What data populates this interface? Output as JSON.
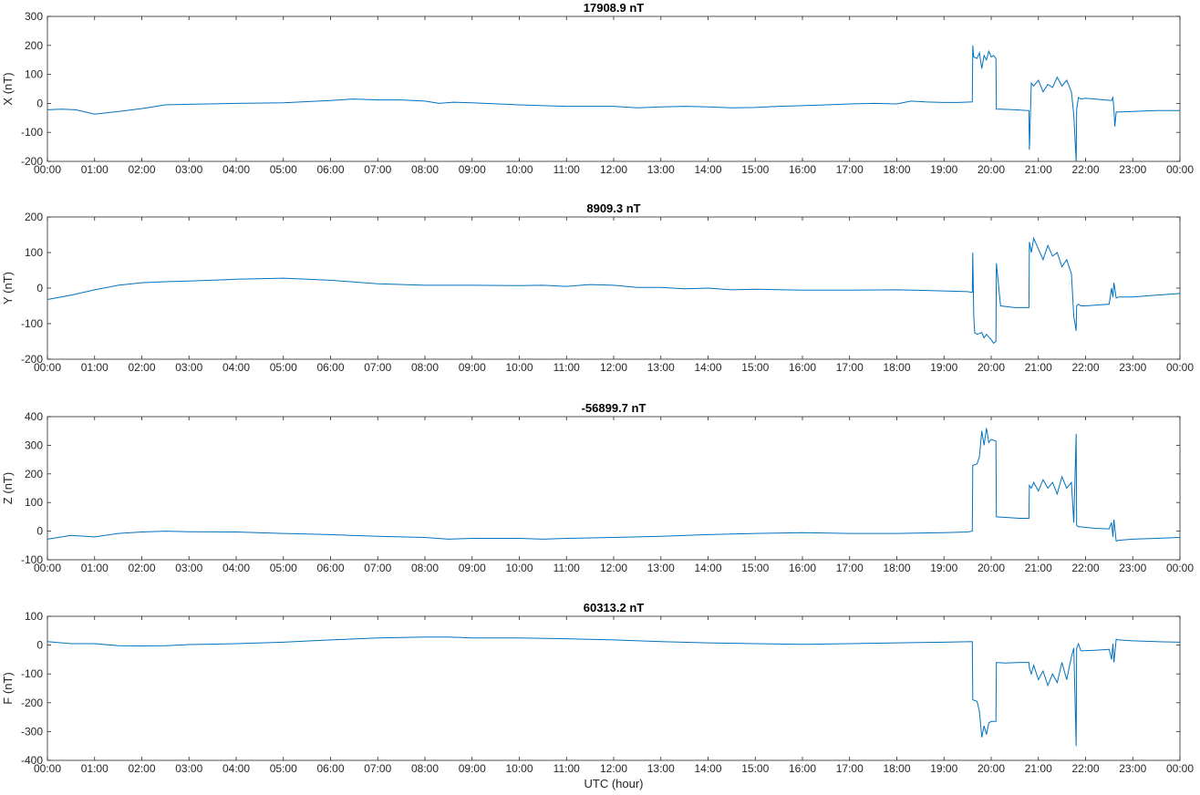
{
  "figure": {
    "xlabel": "UTC (hour)",
    "x_tick_labels": [
      "00:00",
      "01:00",
      "02:00",
      "03:00",
      "04:00",
      "05:00",
      "06:00",
      "07:00",
      "08:00",
      "09:00",
      "10:00",
      "11:00",
      "12:00",
      "13:00",
      "14:00",
      "15:00",
      "16:00",
      "17:00",
      "18:00",
      "19:00",
      "20:00",
      "21:00",
      "22:00",
      "23:00",
      "00:00"
    ],
    "line_color": "#0072BD"
  },
  "chart_data": [
    {
      "type": "line",
      "title": "17908.9 nT",
      "ylabel": "X (nT)",
      "xlim": [
        0,
        24
      ],
      "ylim": [
        -200,
        300
      ],
      "yticks": [
        -200,
        -100,
        0,
        100,
        200,
        300
      ],
      "grid": false,
      "series": [
        {
          "x": [
            0,
            0.3,
            0.6,
            1.0,
            1.4,
            2.0,
            2.5,
            3.0,
            4.0,
            5.0,
            6.0,
            6.5,
            7.0,
            7.5,
            8.0,
            8.3,
            8.6,
            9.0,
            10.0,
            10.5,
            11.0,
            11.5,
            12.0,
            12.5,
            13.0,
            13.5,
            14.0,
            14.5,
            15.0,
            15.5,
            16.0,
            16.5,
            17.0,
            17.5,
            18.0,
            18.3,
            18.6,
            19.0,
            19.3,
            19.6,
            19.61,
            19.63,
            19.7,
            19.75,
            19.8,
            19.85,
            19.9,
            19.95,
            20.0,
            20.05,
            20.1,
            20.11,
            20.2,
            20.5,
            20.8,
            20.81,
            20.85,
            20.9,
            21.0,
            21.1,
            21.2,
            21.3,
            21.4,
            21.5,
            21.6,
            21.7,
            21.75,
            21.8,
            21.81,
            21.85,
            21.9,
            22.0,
            22.2,
            22.4,
            22.55,
            22.58,
            22.6,
            22.62,
            22.65,
            22.7,
            23.0,
            23.5,
            24.0
          ],
          "values": [
            -22,
            -20,
            -22,
            -37,
            -30,
            -18,
            -5,
            -3,
            0,
            2,
            10,
            15,
            12,
            12,
            8,
            0,
            4,
            2,
            -5,
            -8,
            -10,
            -10,
            -10,
            -15,
            -12,
            -10,
            -12,
            -15,
            -14,
            -10,
            -8,
            -5,
            -2,
            0,
            -2,
            8,
            5,
            3,
            3,
            5,
            200,
            160,
            155,
            175,
            120,
            165,
            150,
            180,
            160,
            165,
            155,
            -20,
            -20,
            -22,
            -25,
            -160,
            70,
            60,
            80,
            40,
            65,
            55,
            90,
            60,
            80,
            40,
            -40,
            -200,
            -20,
            20,
            15,
            18,
            15,
            12,
            10,
            20,
            -20,
            -80,
            -30,
            -30,
            -28,
            -25,
            -25
          ]
        }
      ]
    },
    {
      "type": "line",
      "title": "8909.3 nT",
      "ylabel": "Y (nT)",
      "xlim": [
        0,
        24
      ],
      "ylim": [
        -200,
        200
      ],
      "yticks": [
        -200,
        -100,
        0,
        100,
        200
      ],
      "grid": false,
      "series": [
        {
          "x": [
            0,
            0.5,
            1.0,
            1.5,
            2.0,
            2.5,
            3.0,
            4.0,
            5.0,
            6.0,
            7.0,
            8.0,
            9.0,
            10.0,
            10.5,
            11.0,
            11.5,
            12.0,
            12.5,
            13.0,
            13.5,
            14.0,
            14.5,
            15.0,
            16.0,
            17.0,
            18.0,
            19.0,
            19.5,
            19.6,
            19.61,
            19.63,
            19.65,
            19.7,
            19.8,
            19.85,
            19.9,
            20.0,
            20.05,
            20.1,
            20.11,
            20.2,
            20.5,
            20.8,
            20.81,
            20.85,
            20.9,
            21.0,
            21.1,
            21.2,
            21.3,
            21.4,
            21.5,
            21.6,
            21.7,
            21.75,
            21.8,
            21.81,
            21.85,
            21.9,
            22.0,
            22.2,
            22.5,
            22.55,
            22.58,
            22.6,
            22.65,
            22.7,
            23.0,
            23.5,
            24.0
          ],
          "values": [
            -32,
            -20,
            -5,
            8,
            15,
            18,
            20,
            25,
            28,
            22,
            12,
            8,
            8,
            7,
            8,
            5,
            10,
            8,
            2,
            2,
            -2,
            0,
            -5,
            -3,
            -6,
            -6,
            -5,
            -8,
            -10,
            -12,
            100,
            -80,
            -125,
            -130,
            -125,
            -140,
            -130,
            -145,
            -155,
            -150,
            70,
            -50,
            -55,
            -55,
            130,
            100,
            140,
            110,
            80,
            120,
            90,
            100,
            60,
            80,
            40,
            -80,
            -120,
            -50,
            -45,
            -50,
            -50,
            -48,
            -45,
            0,
            -25,
            15,
            -28,
            -25,
            -25,
            -20,
            -15
          ]
        }
      ]
    },
    {
      "type": "line",
      "title": "-56899.7 nT",
      "ylabel": "Z (nT)",
      "xlim": [
        0,
        24
      ],
      "ylim": [
        -100,
        400
      ],
      "yticks": [
        -100,
        0,
        100,
        200,
        300,
        400
      ],
      "grid": false,
      "series": [
        {
          "x": [
            0,
            0.5,
            1.0,
            1.5,
            2.0,
            2.5,
            3.0,
            4.0,
            5.0,
            6.0,
            7.0,
            8.0,
            8.5,
            9.0,
            10.0,
            10.5,
            11.0,
            12.0,
            13.0,
            14.0,
            15.0,
            16.0,
            17.0,
            18.0,
            19.0,
            19.5,
            19.6,
            19.61,
            19.7,
            19.75,
            19.8,
            19.85,
            19.9,
            19.95,
            20.0,
            20.1,
            20.11,
            20.3,
            20.6,
            20.8,
            20.81,
            20.85,
            20.9,
            21.0,
            21.1,
            21.2,
            21.3,
            21.4,
            21.5,
            21.6,
            21.7,
            21.75,
            21.8,
            21.81,
            21.85,
            21.9,
            22.2,
            22.5,
            22.55,
            22.58,
            22.6,
            22.65,
            22.7,
            23.0,
            23.5,
            24.0
          ],
          "values": [
            -28,
            -15,
            -20,
            -8,
            -3,
            0,
            -2,
            -3,
            -8,
            -12,
            -18,
            -22,
            -28,
            -25,
            -25,
            -28,
            -25,
            -22,
            -18,
            -12,
            -8,
            -5,
            -8,
            -8,
            -5,
            -3,
            0,
            230,
            235,
            260,
            350,
            300,
            360,
            310,
            320,
            315,
            50,
            48,
            45,
            45,
            160,
            150,
            170,
            140,
            180,
            150,
            170,
            130,
            190,
            150,
            170,
            30,
            340,
            20,
            15,
            15,
            10,
            8,
            30,
            -20,
            40,
            -35,
            -32,
            -28,
            -25,
            -22
          ]
        }
      ]
    },
    {
      "type": "line",
      "title": "60313.2 nT",
      "ylabel": "F (nT)",
      "xlim": [
        0,
        24
      ],
      "ylim": [
        -400,
        100
      ],
      "yticks": [
        -400,
        -300,
        -200,
        -100,
        0,
        100
      ],
      "grid": false,
      "series": [
        {
          "x": [
            0,
            0.5,
            1.0,
            1.5,
            2.0,
            2.5,
            3.0,
            4.0,
            5.0,
            6.0,
            7.0,
            8.0,
            8.5,
            9.0,
            10.0,
            11.0,
            12.0,
            13.0,
            14.0,
            15.0,
            16.0,
            17.0,
            18.0,
            19.0,
            19.6,
            19.61,
            19.7,
            19.75,
            19.8,
            19.85,
            19.9,
            19.95,
            20.0,
            20.1,
            20.11,
            20.3,
            20.6,
            20.8,
            20.81,
            20.85,
            20.9,
            21.0,
            21.1,
            21.2,
            21.3,
            21.4,
            21.5,
            21.6,
            21.7,
            21.75,
            21.8,
            21.81,
            21.85,
            21.9,
            22.2,
            22.5,
            22.55,
            22.58,
            22.6,
            22.65,
            22.7,
            23.0,
            23.5,
            24.0
          ],
          "values": [
            12,
            5,
            5,
            -2,
            -3,
            -2,
            2,
            5,
            10,
            18,
            25,
            28,
            28,
            25,
            25,
            22,
            18,
            12,
            8,
            5,
            3,
            5,
            8,
            10,
            12,
            -190,
            -195,
            -230,
            -320,
            -280,
            -310,
            -270,
            -265,
            -265,
            -60,
            -62,
            -60,
            -60,
            -80,
            -100,
            -70,
            -120,
            -90,
            -140,
            -100,
            -130,
            -60,
            -120,
            -40,
            -10,
            -350,
            -10,
            5,
            -20,
            -18,
            -15,
            -50,
            5,
            -60,
            20,
            18,
            15,
            12,
            10
          ]
        }
      ]
    }
  ]
}
